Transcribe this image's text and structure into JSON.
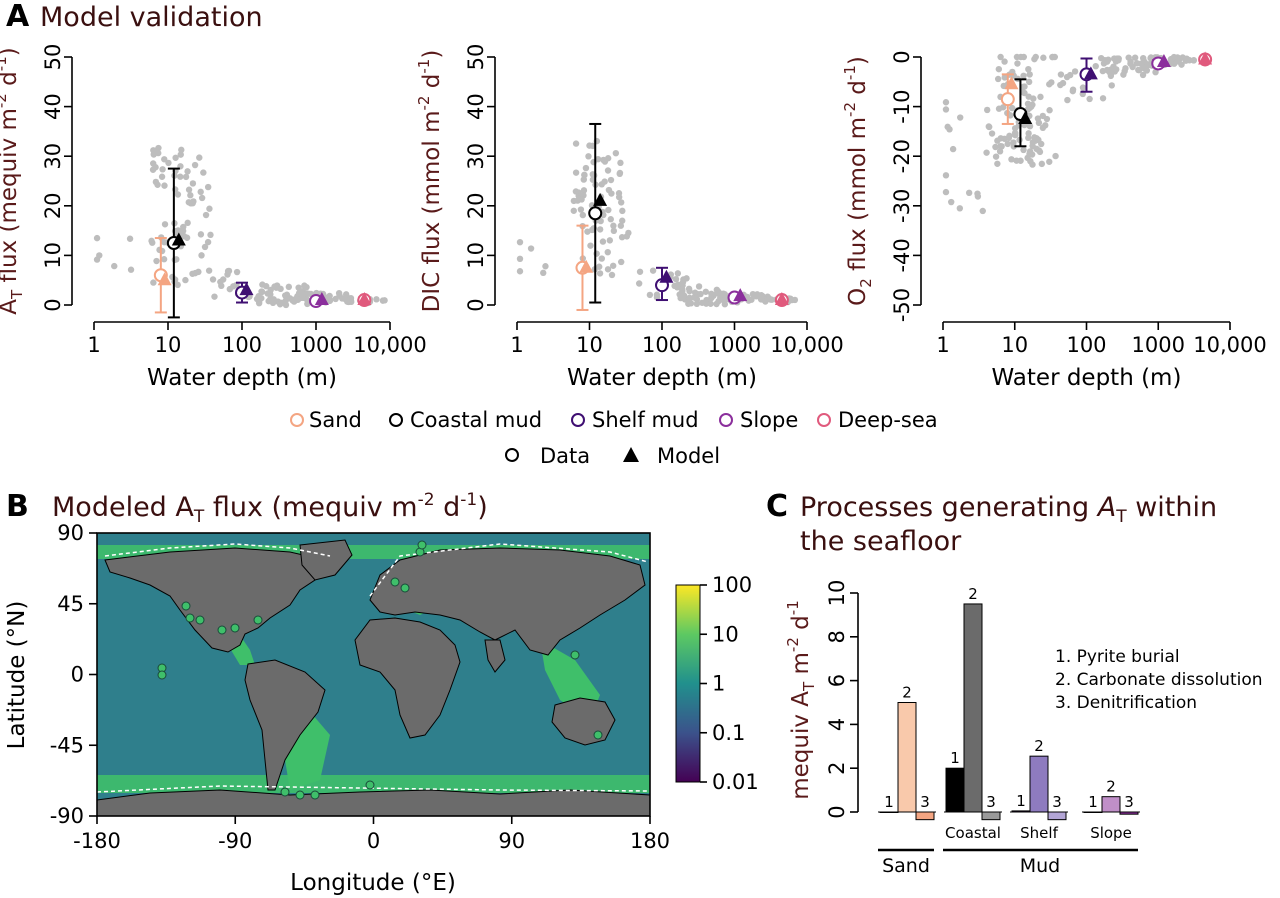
{
  "panel_a": {
    "letter": "A",
    "title": "Model validation",
    "legend_sites": [
      "Sand",
      "Coastal mud",
      "Shelf mud",
      "Slope",
      "Deep-sea"
    ],
    "legend_types": [
      "Data",
      "Model"
    ]
  },
  "panel_b": {
    "letter": "B",
    "title_main": "Modeled A",
    "title_sub": "T",
    "title_rest": " flux (mequiv m",
    "title_sup1": "-2",
    "title_mid": " d",
    "title_sup2": "-1",
    "title_end": ")"
  },
  "panel_c": {
    "letter": "C",
    "title_line1a": "Processes generating ",
    "title_line1b": "A",
    "title_line1c": "T",
    "title_line1d": " within",
    "title_line2": "the seafloor"
  },
  "colors": {
    "sand": "#f4a582",
    "coastal_mud": "#000000",
    "shelf_mud": "#3f0f72",
    "slope": "#8b2f9c",
    "deep_sea": "#e05a7d",
    "data_gray": "#bdbdbd",
    "land": "#6b6b6b",
    "ocean": "#2f7f8c",
    "shelf_green": "#3fbf6a"
  },
  "chart_data": [
    {
      "type": "scatter",
      "id": "at_flux",
      "xlabel": "Water depth (m)",
      "ylabel": "A",
      "ylabel_sub": "T",
      "ylabel_rest": " flux (mequiv m",
      "ylabel_sup1": "-2",
      "ylabel_mid": " d",
      "ylabel_sup2": "-1",
      "ylabel_end": ")",
      "x_scale": "log",
      "xlim": [
        1,
        10000
      ],
      "ylim": [
        0,
        50
      ],
      "xticks": [
        "1",
        "10",
        "100",
        "1000",
        "10,000"
      ],
      "yticks": [
        "0",
        "10",
        "20",
        "30",
        "40",
        "50"
      ],
      "data_means": [
        {
          "group": "Sand",
          "x": 8,
          "y": 6,
          "ylow": -1.5,
          "yhigh": 13.5
        },
        {
          "group": "Coastal mud",
          "x": 12,
          "y": 12.5,
          "ylow": -2.5,
          "yhigh": 27.5
        },
        {
          "group": "Shelf mud",
          "x": 100,
          "y": 2.5,
          "ylow": 0.5,
          "yhigh": 4.5
        },
        {
          "group": "Slope",
          "x": 1000,
          "y": 0.8,
          "ylow": 0.3,
          "yhigh": 1.3
        },
        {
          "group": "Deep-sea",
          "x": 4500,
          "y": 1.0,
          "ylow": 0.4,
          "yhigh": 1.6
        }
      ],
      "model": [
        {
          "group": "Sand",
          "x": 9,
          "y": 5
        },
        {
          "group": "Coastal mud",
          "x": 14,
          "y": 13
        },
        {
          "group": "Shelf mud",
          "x": 115,
          "y": 3
        },
        {
          "group": "Slope",
          "x": 1200,
          "y": 1
        },
        {
          "group": "Deep-sea",
          "x": 4500,
          "y": 1
        }
      ]
    },
    {
      "type": "scatter",
      "id": "dic_flux",
      "xlabel": "Water depth (m)",
      "ylabel": "DIC flux (mmol m",
      "ylabel_sup1": "-2",
      "ylabel_mid": " d",
      "ylabel_sup2": "-1",
      "ylabel_end": ")",
      "x_scale": "log",
      "xlim": [
        1,
        10000
      ],
      "ylim": [
        0,
        50
      ],
      "xticks": [
        "1",
        "10",
        "100",
        "1000",
        "10,000"
      ],
      "yticks": [
        "0",
        "10",
        "20",
        "30",
        "40",
        "50"
      ],
      "data_means": [
        {
          "group": "Sand",
          "x": 8,
          "y": 7.5,
          "ylow": -1,
          "yhigh": 16
        },
        {
          "group": "Coastal mud",
          "x": 12,
          "y": 18.5,
          "ylow": 0.5,
          "yhigh": 36.5
        },
        {
          "group": "Shelf mud",
          "x": 100,
          "y": 4,
          "ylow": 1,
          "yhigh": 7.5
        },
        {
          "group": "Slope",
          "x": 1000,
          "y": 1.5,
          "ylow": 0.8,
          "yhigh": 2.2
        },
        {
          "group": "Deep-sea",
          "x": 4500,
          "y": 1.0,
          "ylow": 0.5,
          "yhigh": 1.5
        }
      ],
      "model": [
        {
          "group": "Sand",
          "x": 9,
          "y": 7.5
        },
        {
          "group": "Coastal mud",
          "x": 14,
          "y": 21
        },
        {
          "group": "Shelf mud",
          "x": 115,
          "y": 5.5
        },
        {
          "group": "Slope",
          "x": 1200,
          "y": 1.8
        },
        {
          "group": "Deep-sea",
          "x": 4500,
          "y": 1
        }
      ]
    },
    {
      "type": "scatter",
      "id": "o2_flux",
      "xlabel": "Water depth (m)",
      "ylabel": "O",
      "ylabel_sub": "2",
      "ylabel_rest": " flux (mmol m",
      "ylabel_sup1": "-2",
      "ylabel_mid": " d",
      "ylabel_sup2": "-1",
      "ylabel_end": ")",
      "x_scale": "log",
      "xlim": [
        1,
        10000
      ],
      "ylim": [
        -50,
        0
      ],
      "xticks": [
        "1",
        "10",
        "100",
        "1000",
        "10,000"
      ],
      "yticks": [
        "0",
        "-10",
        "-20",
        "-30",
        "-40",
        "-50"
      ],
      "data_means": [
        {
          "group": "Sand",
          "x": 8,
          "y": -8.5,
          "ylow": -13.5,
          "yhigh": -3.5
        },
        {
          "group": "Coastal mud",
          "x": 12,
          "y": -11.5,
          "ylow": -18,
          "yhigh": -4.5
        },
        {
          "group": "Shelf mud",
          "x": 100,
          "y": -3.5,
          "ylow": -7,
          "yhigh": -0.3
        },
        {
          "group": "Slope",
          "x": 1000,
          "y": -1.3,
          "ylow": -2,
          "yhigh": -0.6
        },
        {
          "group": "Deep-sea",
          "x": 4500,
          "y": -0.5,
          "ylow": -0.9,
          "yhigh": -0.1
        }
      ],
      "model": [
        {
          "group": "Sand",
          "x": 9,
          "y": -5.5
        },
        {
          "group": "Coastal mud",
          "x": 14,
          "y": -12.5
        },
        {
          "group": "Shelf mud",
          "x": 115,
          "y": -3.5
        },
        {
          "group": "Slope",
          "x": 1200,
          "y": -1
        },
        {
          "group": "Deep-sea",
          "x": 4500,
          "y": -0.5
        }
      ]
    },
    {
      "type": "heatmap",
      "id": "map",
      "xlabel": "Longitude (°E)",
      "ylabel": "Latitude (°N)",
      "xlim": [
        -180,
        180
      ],
      "ylim": [
        -90,
        90
      ],
      "xticks": [
        "-180",
        "-90",
        "0",
        "90",
        "180"
      ],
      "yticks": [
        "90",
        "45",
        "0",
        "-45",
        "-90"
      ],
      "colorbar_ticks": [
        "100",
        "10",
        "1",
        "0.1",
        "0.01"
      ],
      "colorbar_scale": "log",
      "colorbar_range": [
        0.01,
        100
      ]
    },
    {
      "type": "bar",
      "id": "processes",
      "ylabel": "mequiv A",
      "ylabel_sub": "T",
      "ylabel_rest": " m",
      "ylabel_sup1": "-2",
      "ylabel_mid": " d",
      "ylabel_sup2": "-1",
      "ylim": [
        -0.5,
        10
      ],
      "yticks": [
        "0",
        "2",
        "4",
        "6",
        "8",
        "10"
      ],
      "process_legend": [
        "1. Pyrite burial",
        "2. Carbonate dissolution",
        "3. Denitrification"
      ],
      "groups": [
        {
          "name": "Sand",
          "values": [
            0,
            5,
            -0.35
          ],
          "labels": [
            "1",
            "2",
            "3"
          ]
        },
        {
          "name": "Coastal",
          "values": [
            2,
            9.5,
            -0.35
          ],
          "labels": [
            "1",
            "2",
            "3"
          ]
        },
        {
          "name": "Shelf",
          "values": [
            0.05,
            2.55,
            -0.35
          ],
          "labels": [
            "1",
            "2",
            "3"
          ]
        },
        {
          "name": "Slope",
          "values": [
            0,
            0.7,
            -0.1
          ],
          "labels": [
            "1",
            "2",
            "3"
          ]
        }
      ],
      "bracket_labels": [
        "Sand",
        "Mud"
      ]
    }
  ]
}
